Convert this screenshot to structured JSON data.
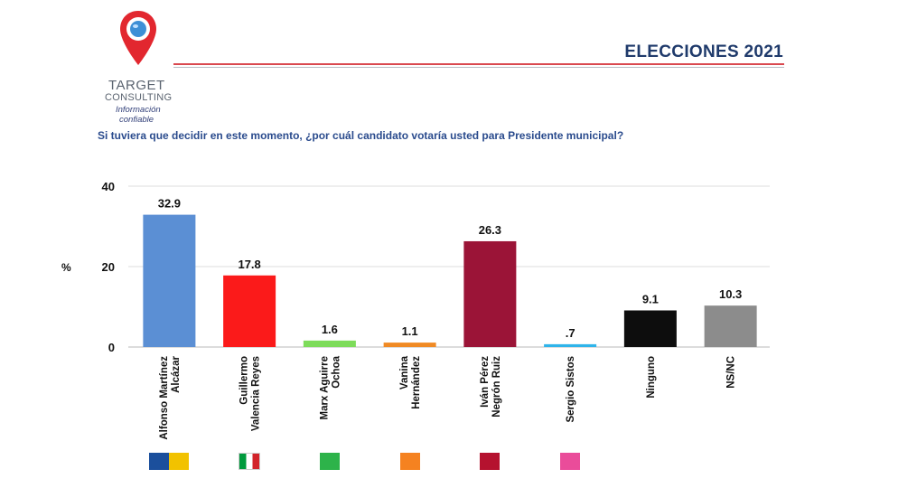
{
  "header": {
    "title": "ELECCIONES 2021",
    "brand_line1": "TARGET",
    "brand_line2": "CONSULTING",
    "tagline_line1": "Información",
    "tagline_line2": "confiable"
  },
  "question": "Si tuviera que decidir en este momento, ¿por cuál candidato votaría usted para Presidente municipal?",
  "colors": {
    "title": "#1f3a6b",
    "question": "#2a4b8d",
    "accent_red": "#d9484f"
  },
  "chart_data": {
    "type": "bar",
    "ylabel": "%",
    "ylim": [
      0,
      40
    ],
    "yticks": [
      0,
      20,
      40
    ],
    "grid": true,
    "categories": [
      [
        "Alfonso Martínez",
        "Alcázar"
      ],
      [
        "Guillermo",
        "Valencia Reyes"
      ],
      [
        "Marx Aguirre",
        "Ochoa"
      ],
      [
        "Vanina",
        "Hernández"
      ],
      [
        "Iván Pérez",
        "Negrón Ruiz"
      ],
      [
        "Sergio Sistos"
      ],
      [
        "Ninguno"
      ],
      [
        "NS/NC"
      ]
    ],
    "values": [
      32.9,
      17.8,
      1.6,
      1.1,
      26.3,
      0.7,
      9.1,
      10.3
    ],
    "value_labels": [
      "32.9",
      "17.8",
      "1.6",
      "1.1",
      "26.3",
      ".7",
      "9.1",
      "10.3"
    ],
    "bar_colors": [
      "#5b8fd4",
      "#fb1a1a",
      "#7ddc5a",
      "#f08a24",
      "#9b1437",
      "#2fb4ea",
      "#0d0d0d",
      "#8c8c8c"
    ],
    "party_logos": [
      {
        "name": "pan-prd-logo",
        "colors": [
          "#1b4f9c",
          "#f2c200"
        ]
      },
      {
        "name": "pri-logo",
        "colors": [
          "#009a3d",
          "#ffffff",
          "#d2232a"
        ]
      },
      {
        "name": "verde-logo",
        "colors": [
          "#2db34a"
        ]
      },
      {
        "name": "movimiento-ciudadano-logo",
        "colors": [
          "#f58220"
        ]
      },
      {
        "name": "morena-logo",
        "colors": [
          "#b5122f"
        ]
      },
      {
        "name": "fuerza-mexico-logo",
        "colors": [
          "#ea4c9a"
        ]
      }
    ]
  }
}
